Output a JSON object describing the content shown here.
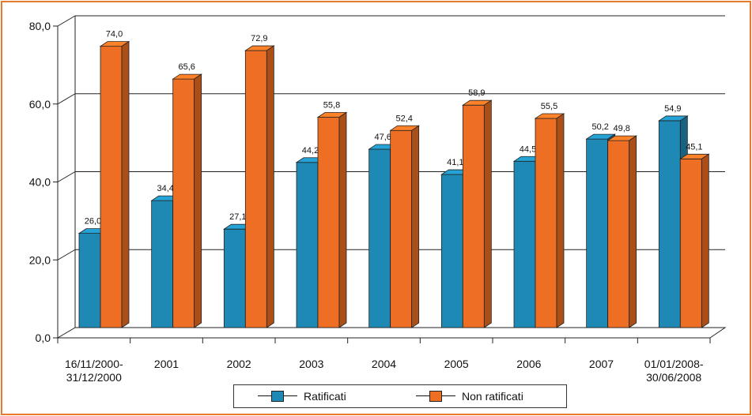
{
  "chart_data": {
    "type": "bar",
    "categories": [
      "16/11/2000-\n31/12/2000",
      "2001",
      "2002",
      "2003",
      "2004",
      "2005",
      "2006",
      "2007",
      "01/01/2008-\n30/06/2008"
    ],
    "series": [
      {
        "name": "Ratificati",
        "color": "#1f89b5",
        "values": [
          26.0,
          34.4,
          27.1,
          44.2,
          47.6,
          41.1,
          44.5,
          50.2,
          54.9
        ],
        "labels": [
          "26,0",
          "34,4",
          "27,1",
          "44,2",
          "47,6",
          "41,1",
          "44,5",
          "50,2",
          "54,9"
        ]
      },
      {
        "name": "Non ratificati",
        "color": "#ee6e23",
        "values": [
          74.0,
          65.6,
          72.9,
          55.8,
          52.4,
          58.9,
          55.5,
          49.8,
          45.1
        ],
        "labels": [
          "74,0",
          "65,6",
          "72,9",
          "55,8",
          "52,4",
          "58,9",
          "55,5",
          "49,8",
          "45,1"
        ]
      }
    ],
    "yticks": [
      "0,0",
      "20,0",
      "40,0",
      "60,0",
      "80,0"
    ],
    "ylim": [
      0,
      80
    ],
    "grid": true,
    "legend_position": "bottom"
  },
  "legend": {
    "item1": "Ratificati",
    "item2": "Non ratificati"
  }
}
